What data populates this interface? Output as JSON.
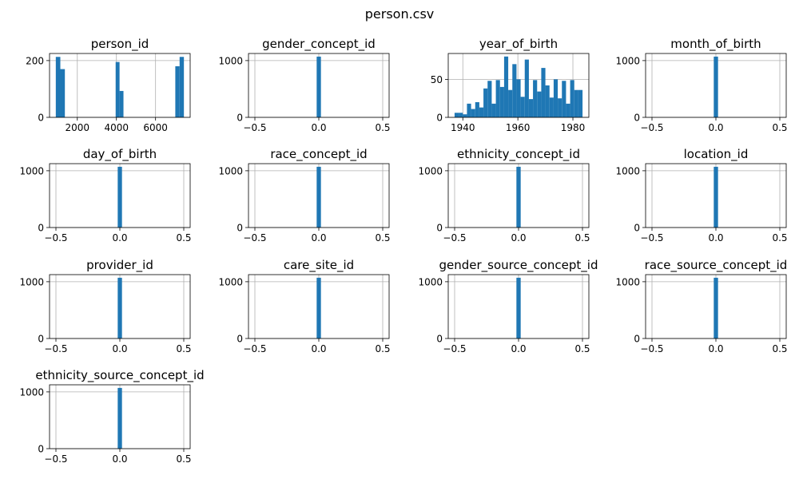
{
  "figure": {
    "title": "person.csv"
  },
  "colors": {
    "bar": "#1f77b4",
    "grid": "#b0b0b0",
    "axis": "#000000"
  },
  "chart_data": [
    {
      "type": "bar",
      "title": "person_id",
      "bins": [
        {
          "x0": 900,
          "x1": 1132,
          "count": 213
        },
        {
          "x0": 1132,
          "x1": 1364,
          "count": 170
        },
        {
          "x0": 3960,
          "x1": 4160,
          "count": 195
        },
        {
          "x0": 4160,
          "x1": 4360,
          "count": 93
        },
        {
          "x0": 7010,
          "x1": 7230,
          "count": 180
        },
        {
          "x0": 7230,
          "x1": 7450,
          "count": 213
        }
      ],
      "xlim": [
        580,
        7770
      ],
      "ylim": [
        0,
        225
      ],
      "xticks": [
        {
          "v": 2000,
          "label": "2000"
        },
        {
          "v": 4000,
          "label": "4000"
        },
        {
          "v": 6000,
          "label": "6000"
        }
      ],
      "yticks": [
        {
          "v": 0,
          "label": "0"
        },
        {
          "v": 200,
          "label": "200"
        }
      ],
      "grid": true
    },
    {
      "type": "bar",
      "title": "gender_concept_id",
      "bins": [
        {
          "x0": -0.0167,
          "x1": 0.0167,
          "count": 1070
        }
      ],
      "xlim": [
        -0.55,
        0.55
      ],
      "ylim": [
        0,
        1125
      ],
      "xticks": [
        {
          "v": -0.5,
          "label": "−0.5"
        },
        {
          "v": 0,
          "label": "0.0"
        },
        {
          "v": 0.5,
          "label": "0.5"
        }
      ],
      "yticks": [
        {
          "v": 0,
          "label": "0"
        },
        {
          "v": 1000,
          "label": "1000"
        }
      ],
      "grid": true
    },
    {
      "type": "bar",
      "title": "year_of_birth",
      "bins": [
        {
          "x0": 1937.0,
          "x1": 1938.5,
          "count": 6
        },
        {
          "x0": 1938.5,
          "x1": 1940.0,
          "count": 6
        },
        {
          "x0": 1940.0,
          "x1": 1941.5,
          "count": 4
        },
        {
          "x0": 1941.5,
          "x1": 1943.0,
          "count": 18
        },
        {
          "x0": 1943.0,
          "x1": 1944.5,
          "count": 11
        },
        {
          "x0": 1944.5,
          "x1": 1946.0,
          "count": 20
        },
        {
          "x0": 1946.0,
          "x1": 1947.5,
          "count": 13
        },
        {
          "x0": 1947.5,
          "x1": 1949.0,
          "count": 38
        },
        {
          "x0": 1949.0,
          "x1": 1950.5,
          "count": 48
        },
        {
          "x0": 1950.5,
          "x1": 1952.0,
          "count": 18
        },
        {
          "x0": 1952.0,
          "x1": 1953.5,
          "count": 49
        },
        {
          "x0": 1953.5,
          "x1": 1955.0,
          "count": 40
        },
        {
          "x0": 1955.0,
          "x1": 1956.5,
          "count": 80
        },
        {
          "x0": 1956.5,
          "x1": 1958.0,
          "count": 36
        },
        {
          "x0": 1958.0,
          "x1": 1959.5,
          "count": 70
        },
        {
          "x0": 1959.5,
          "x1": 1961.0,
          "count": 50
        },
        {
          "x0": 1961.0,
          "x1": 1962.5,
          "count": 27
        },
        {
          "x0": 1962.5,
          "x1": 1964.0,
          "count": 76
        },
        {
          "x0": 1964.0,
          "x1": 1965.5,
          "count": 24
        },
        {
          "x0": 1965.5,
          "x1": 1967.0,
          "count": 49
        },
        {
          "x0": 1967.0,
          "x1": 1968.5,
          "count": 34
        },
        {
          "x0": 1968.5,
          "x1": 1970.0,
          "count": 65
        },
        {
          "x0": 1970.0,
          "x1": 1971.5,
          "count": 42
        },
        {
          "x0": 1971.5,
          "x1": 1973.0,
          "count": 26
        },
        {
          "x0": 1973.0,
          "x1": 1974.5,
          "count": 50
        },
        {
          "x0": 1974.5,
          "x1": 1976.0,
          "count": 25
        },
        {
          "x0": 1976.0,
          "x1": 1977.5,
          "count": 48
        },
        {
          "x0": 1977.5,
          "x1": 1979.0,
          "count": 18
        },
        {
          "x0": 1979.0,
          "x1": 1980.5,
          "count": 49
        },
        {
          "x0": 1980.5,
          "x1": 1982.0,
          "count": 36
        },
        {
          "x0": 1982.0,
          "x1": 1983.5,
          "count": 36
        }
      ],
      "xlim": [
        1934.7,
        1985.8
      ],
      "ylim": [
        0,
        84
      ],
      "xticks": [
        {
          "v": 1940,
          "label": "1940"
        },
        {
          "v": 1960,
          "label": "1960"
        },
        {
          "v": 1980,
          "label": "1980"
        }
      ],
      "yticks": [
        {
          "v": 0,
          "label": "0"
        },
        {
          "v": 50,
          "label": "50"
        }
      ],
      "grid": true
    },
    {
      "type": "bar",
      "title": "month_of_birth",
      "bins": [
        {
          "x0": -0.0167,
          "x1": 0.0167,
          "count": 1070
        }
      ],
      "xlim": [
        -0.55,
        0.55
      ],
      "ylim": [
        0,
        1125
      ],
      "xticks": [
        {
          "v": -0.5,
          "label": "−0.5"
        },
        {
          "v": 0,
          "label": "0.0"
        },
        {
          "v": 0.5,
          "label": "0.5"
        }
      ],
      "yticks": [
        {
          "v": 0,
          "label": "0"
        },
        {
          "v": 1000,
          "label": "1000"
        }
      ],
      "grid": true
    },
    {
      "type": "bar",
      "title": "day_of_birth",
      "bins": [
        {
          "x0": -0.0167,
          "x1": 0.0167,
          "count": 1070
        }
      ],
      "xlim": [
        -0.55,
        0.55
      ],
      "ylim": [
        0,
        1125
      ],
      "xticks": [
        {
          "v": -0.5,
          "label": "−0.5"
        },
        {
          "v": 0,
          "label": "0.0"
        },
        {
          "v": 0.5,
          "label": "0.5"
        }
      ],
      "yticks": [
        {
          "v": 0,
          "label": "0"
        },
        {
          "v": 1000,
          "label": "1000"
        }
      ],
      "grid": true
    },
    {
      "type": "bar",
      "title": "race_concept_id",
      "bins": [
        {
          "x0": -0.0167,
          "x1": 0.0167,
          "count": 1070
        }
      ],
      "xlim": [
        -0.55,
        0.55
      ],
      "ylim": [
        0,
        1125
      ],
      "xticks": [
        {
          "v": -0.5,
          "label": "−0.5"
        },
        {
          "v": 0,
          "label": "0.0"
        },
        {
          "v": 0.5,
          "label": "0.5"
        }
      ],
      "yticks": [
        {
          "v": 0,
          "label": "0"
        },
        {
          "v": 1000,
          "label": "1000"
        }
      ],
      "grid": true
    },
    {
      "type": "bar",
      "title": "ethnicity_concept_id",
      "bins": [
        {
          "x0": -0.0167,
          "x1": 0.0167,
          "count": 1070
        }
      ],
      "xlim": [
        -0.55,
        0.55
      ],
      "ylim": [
        0,
        1125
      ],
      "xticks": [
        {
          "v": -0.5,
          "label": "−0.5"
        },
        {
          "v": 0,
          "label": "0.0"
        },
        {
          "v": 0.5,
          "label": "0.5"
        }
      ],
      "yticks": [
        {
          "v": 0,
          "label": "0"
        },
        {
          "v": 1000,
          "label": "1000"
        }
      ],
      "grid": true
    },
    {
      "type": "bar",
      "title": "location_id",
      "bins": [
        {
          "x0": -0.0167,
          "x1": 0.0167,
          "count": 1070
        }
      ],
      "xlim": [
        -0.55,
        0.55
      ],
      "ylim": [
        0,
        1125
      ],
      "xticks": [
        {
          "v": -0.5,
          "label": "−0.5"
        },
        {
          "v": 0,
          "label": "0.0"
        },
        {
          "v": 0.5,
          "label": "0.5"
        }
      ],
      "yticks": [
        {
          "v": 0,
          "label": "0"
        },
        {
          "v": 1000,
          "label": "1000"
        }
      ],
      "grid": true
    },
    {
      "type": "bar",
      "title": "provider_id",
      "bins": [
        {
          "x0": -0.0167,
          "x1": 0.0167,
          "count": 1070
        }
      ],
      "xlim": [
        -0.55,
        0.55
      ],
      "ylim": [
        0,
        1125
      ],
      "xticks": [
        {
          "v": -0.5,
          "label": "−0.5"
        },
        {
          "v": 0,
          "label": "0.0"
        },
        {
          "v": 0.5,
          "label": "0.5"
        }
      ],
      "yticks": [
        {
          "v": 0,
          "label": "0"
        },
        {
          "v": 1000,
          "label": "1000"
        }
      ],
      "grid": true
    },
    {
      "type": "bar",
      "title": "care_site_id",
      "bins": [
        {
          "x0": -0.0167,
          "x1": 0.0167,
          "count": 1070
        }
      ],
      "xlim": [
        -0.55,
        0.55
      ],
      "ylim": [
        0,
        1125
      ],
      "xticks": [
        {
          "v": -0.5,
          "label": "−0.5"
        },
        {
          "v": 0,
          "label": "0.0"
        },
        {
          "v": 0.5,
          "label": "0.5"
        }
      ],
      "yticks": [
        {
          "v": 0,
          "label": "0"
        },
        {
          "v": 1000,
          "label": "1000"
        }
      ],
      "grid": true
    },
    {
      "type": "bar",
      "title": "gender_source_concept_id",
      "bins": [
        {
          "x0": -0.0167,
          "x1": 0.0167,
          "count": 1070
        }
      ],
      "xlim": [
        -0.55,
        0.55
      ],
      "ylim": [
        0,
        1125
      ],
      "xticks": [
        {
          "v": -0.5,
          "label": "−0.5"
        },
        {
          "v": 0,
          "label": "0.0"
        },
        {
          "v": 0.5,
          "label": "0.5"
        }
      ],
      "yticks": [
        {
          "v": 0,
          "label": "0"
        },
        {
          "v": 1000,
          "label": "1000"
        }
      ],
      "grid": true
    },
    {
      "type": "bar",
      "title": "race_source_concept_id",
      "bins": [
        {
          "x0": -0.0167,
          "x1": 0.0167,
          "count": 1070
        }
      ],
      "xlim": [
        -0.55,
        0.55
      ],
      "ylim": [
        0,
        1125
      ],
      "xticks": [
        {
          "v": -0.5,
          "label": "−0.5"
        },
        {
          "v": 0,
          "label": "0.0"
        },
        {
          "v": 0.5,
          "label": "0.5"
        }
      ],
      "yticks": [
        {
          "v": 0,
          "label": "0"
        },
        {
          "v": 1000,
          "label": "1000"
        }
      ],
      "grid": true
    },
    {
      "type": "bar",
      "title": "ethnicity_source_concept_id",
      "bins": [
        {
          "x0": -0.0167,
          "x1": 0.0167,
          "count": 1070
        }
      ],
      "xlim": [
        -0.55,
        0.55
      ],
      "ylim": [
        0,
        1125
      ],
      "xticks": [
        {
          "v": -0.5,
          "label": "−0.5"
        },
        {
          "v": 0,
          "label": "0.0"
        },
        {
          "v": 0.5,
          "label": "0.5"
        }
      ],
      "yticks": [
        {
          "v": 0,
          "label": "0"
        },
        {
          "v": 1000,
          "label": "1000"
        }
      ],
      "grid": true
    }
  ]
}
